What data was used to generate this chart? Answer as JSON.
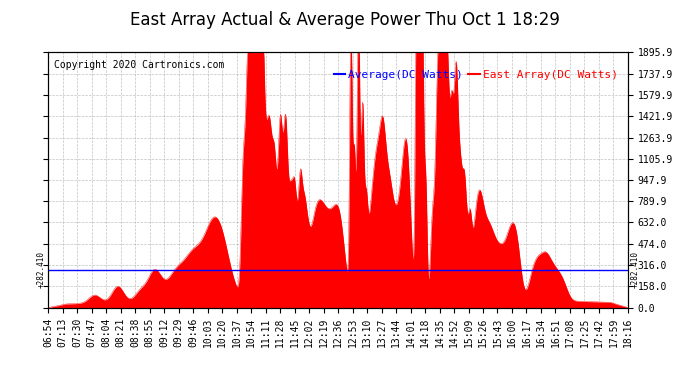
{
  "title": "East Array Actual & Average Power Thu Oct 1 18:29",
  "copyright": "Copyright 2020 Cartronics.com",
  "legend_avg": "Average(DC Watts)",
  "legend_east": "East Array(DC Watts)",
  "avg_line_value": 282.41,
  "y_ticks": [
    0.0,
    158.0,
    316.0,
    474.0,
    632.0,
    789.9,
    947.9,
    1105.9,
    1263.9,
    1421.9,
    1579.9,
    1737.9,
    1895.9
  ],
  "ymin": 0.0,
  "ymax": 1895.9,
  "x_tick_labels": [
    "06:54",
    "07:13",
    "07:30",
    "07:47",
    "08:04",
    "08:21",
    "08:38",
    "08:55",
    "09:12",
    "09:29",
    "09:46",
    "10:03",
    "10:20",
    "10:37",
    "10:54",
    "11:11",
    "11:28",
    "11:45",
    "12:02",
    "12:19",
    "12:36",
    "12:53",
    "13:10",
    "13:27",
    "13:44",
    "14:01",
    "14:18",
    "14:35",
    "14:52",
    "15:09",
    "15:26",
    "15:43",
    "16:00",
    "16:17",
    "16:34",
    "16:51",
    "17:08",
    "17:25",
    "17:42",
    "17:59",
    "18:16"
  ],
  "avg_color": "#0000ff",
  "east_color": "#ff0000",
  "bg_color": "#ffffff",
  "grid_color": "#999999",
  "title_fontsize": 12,
  "tick_fontsize": 7,
  "copyright_fontsize": 7,
  "legend_fontsize": 8
}
